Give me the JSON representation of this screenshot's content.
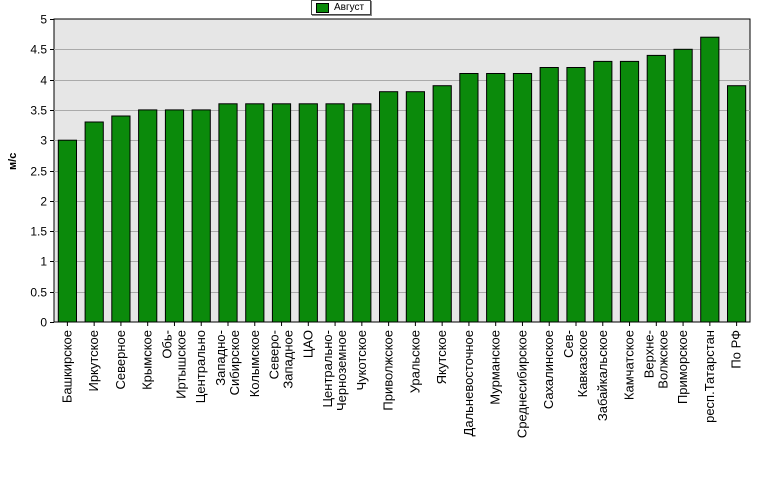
{
  "chart_data": {
    "type": "bar",
    "legend": {
      "label": "Август",
      "placement": "top-center"
    },
    "ylabel": "м/с",
    "xlabel": "",
    "ylim": [
      0,
      5
    ],
    "yticks": [
      "0",
      "0.5",
      "1",
      "1.5",
      "2",
      "2.5",
      "3",
      "3.5",
      "4",
      "4.5",
      "5"
    ],
    "grid": true,
    "colors": {
      "bar": "#0b8a0b",
      "bar_edge": "#000000",
      "plot_bg": "#e6e6e6",
      "grid": "#aaaaaa"
    },
    "categories": [
      "Башкирское",
      "Иркутское",
      "Северное",
      "Крымское",
      "Обь-Иртышское",
      "Центрально",
      "Западно-Сибирское",
      "Колымское",
      "Северо-Западное",
      "ЦАО",
      "Центрально-Черноземное",
      "Чукотское",
      "Приволжское",
      "Уральское",
      "Якутское",
      "Дальневосточное",
      "Мурманское",
      "Среднесибирское",
      "Сахалинское",
      "Сев-Кавказское",
      "Забайкальское",
      "Камчатское",
      "Верхне-Волжское",
      "Приморское",
      "респ.Татарстан",
      "По РФ"
    ],
    "category_lines": [
      [
        "Башкирское"
      ],
      [
        "Иркутское"
      ],
      [
        "Северное"
      ],
      [
        "Крымское"
      ],
      [
        "Обь-",
        "Иртышское"
      ],
      [
        "Центрально"
      ],
      [
        "Западно-",
        "Сибирское"
      ],
      [
        "Колымское"
      ],
      [
        "Северо-",
        "Западное"
      ],
      [
        "ЦАО"
      ],
      [
        "Центрально-",
        "Черноземное"
      ],
      [
        "Чукотское"
      ],
      [
        "Приволжское"
      ],
      [
        "Уральское"
      ],
      [
        "Якутское"
      ],
      [
        "Дальневосточное"
      ],
      [
        "Мурманское"
      ],
      [
        "Среднесибирское"
      ],
      [
        "Сахалинское"
      ],
      [
        "Сев-",
        "Кавказское"
      ],
      [
        "Забайкальское"
      ],
      [
        "Камчатское"
      ],
      [
        "Верхне-",
        "Волжское"
      ],
      [
        "Приморское"
      ],
      [
        "респ.Татарстан"
      ],
      [
        "По РФ"
      ]
    ],
    "series": [
      {
        "name": "Август",
        "values": [
          3.0,
          3.3,
          3.4,
          3.5,
          3.5,
          3.5,
          3.6,
          3.6,
          3.6,
          3.6,
          3.6,
          3.6,
          3.8,
          3.8,
          3.9,
          4.1,
          4.1,
          4.1,
          4.2,
          4.2,
          4.3,
          4.3,
          4.4,
          4.5,
          4.7,
          3.9
        ]
      }
    ]
  }
}
